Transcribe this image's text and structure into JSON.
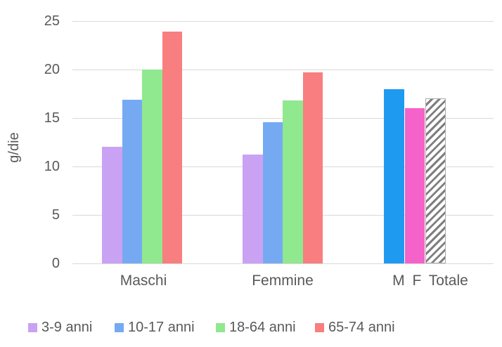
{
  "figure": {
    "background_color": "#ffffff",
    "text_color": "#595959",
    "gridline_color": "#d9d9d9"
  },
  "chart_data": {
    "type": "bar",
    "title": "",
    "xlabel": "",
    "ylabel": "g/die",
    "ylim": [
      0,
      25
    ],
    "y_ticks": [
      0,
      5,
      10,
      15,
      20,
      25
    ],
    "grid": "horizontal",
    "legend_position": "bottom",
    "categories": [
      "Maschi",
      "Femmine",
      "M F Totale"
    ],
    "groups": [
      {
        "label": "Maschi",
        "bars": [
          {
            "name": "3-9 anni",
            "value": 12.0,
            "color": "#c9a2f3"
          },
          {
            "name": "10-17 anni",
            "value": 16.9,
            "color": "#75aaf3"
          },
          {
            "name": "18-64 anni",
            "value": 20.0,
            "color": "#90e88f"
          },
          {
            "name": "65-74 anni",
            "value": 23.9,
            "color": "#f87e80"
          }
        ]
      },
      {
        "label": "Femmine",
        "bars": [
          {
            "name": "3-9 anni",
            "value": 11.2,
            "color": "#c9a2f3"
          },
          {
            "name": "10-17 anni",
            "value": 14.6,
            "color": "#75aaf3"
          },
          {
            "name": "18-64 anni",
            "value": 16.8,
            "color": "#90e88f"
          },
          {
            "name": "65-74 anni",
            "value": 19.7,
            "color": "#f87e80"
          }
        ]
      },
      {
        "label": "M F Totale",
        "bars": [
          {
            "name": "M",
            "value": 18.0,
            "color": "#1e9bf0"
          },
          {
            "name": "F",
            "value": 16.0,
            "color": "#f562ca"
          },
          {
            "name": "Totale",
            "value": 17.0,
            "color": "#7f7f7f",
            "pattern": "diagonal-hatch"
          }
        ]
      }
    ],
    "legend": [
      {
        "label": "3-9 anni",
        "color": "#c9a2f3"
      },
      {
        "label": "10-17 anni",
        "color": "#75aaf3"
      },
      {
        "label": "18-64 anni",
        "color": "#90e88f"
      },
      {
        "label": "65-74 anni",
        "color": "#f87e80"
      }
    ]
  }
}
